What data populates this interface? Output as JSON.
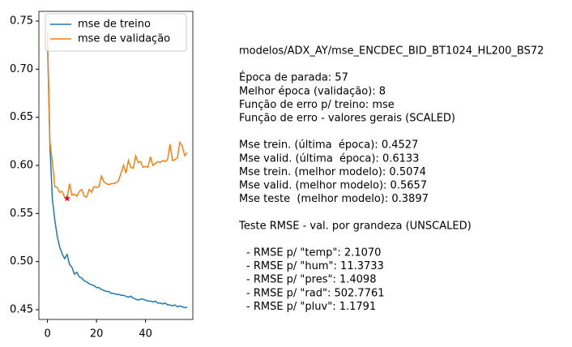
{
  "chart_data": {
    "type": "line",
    "x": [
      0,
      1,
      2,
      3,
      4,
      5,
      6,
      7,
      8,
      9,
      10,
      11,
      12,
      13,
      14,
      15,
      16,
      17,
      18,
      19,
      20,
      21,
      22,
      23,
      24,
      25,
      26,
      27,
      28,
      29,
      30,
      31,
      32,
      33,
      34,
      35,
      36,
      37,
      38,
      39,
      40,
      41,
      42,
      43,
      44,
      45,
      46,
      47,
      48,
      49,
      50,
      51,
      52,
      53,
      54,
      55,
      56,
      57
    ],
    "series": [
      {
        "name": "mse de treino",
        "color": "#1f77b4",
        "values": [
          0.73,
          0.62,
          0.565,
          0.543,
          0.526,
          0.515,
          0.508,
          0.503,
          0.5074,
          0.497,
          0.494,
          0.487,
          0.489,
          0.484,
          0.483,
          0.48,
          0.479,
          0.477,
          0.476,
          0.475,
          0.473,
          0.473,
          0.471,
          0.47,
          0.469,
          0.469,
          0.467,
          0.467,
          0.466,
          0.466,
          0.465,
          0.465,
          0.464,
          0.463,
          0.464,
          0.462,
          0.461,
          0.46,
          0.461,
          0.461,
          0.46,
          0.459,
          0.459,
          0.458,
          0.459,
          0.457,
          0.457,
          0.456,
          0.457,
          0.455,
          0.455,
          0.454,
          0.455,
          0.453,
          0.454,
          0.453,
          0.452,
          0.4527
        ]
      },
      {
        "name": "mse de validação",
        "color": "#ff7f0e",
        "values": [
          0.74,
          0.625,
          0.603,
          0.578,
          0.577,
          0.572,
          0.573,
          0.567,
          0.5657,
          0.581,
          0.569,
          0.57,
          0.568,
          0.573,
          0.575,
          0.568,
          0.567,
          0.575,
          0.572,
          0.578,
          0.577,
          0.578,
          0.589,
          0.583,
          0.581,
          0.58,
          0.581,
          0.581,
          0.582,
          0.584,
          0.592,
          0.6,
          0.592,
          0.605,
          0.598,
          0.597,
          0.61,
          0.603,
          0.604,
          0.598,
          0.599,
          0.598,
          0.609,
          0.6,
          0.602,
          0.604,
          0.603,
          0.605,
          0.604,
          0.606,
          0.622,
          0.605,
          0.606,
          0.608,
          0.624,
          0.62,
          0.61,
          0.6133
        ]
      }
    ],
    "highlight": {
      "series": 1,
      "index": 8,
      "color": "#ff0000"
    },
    "xlim": [
      -3.5,
      59.3
    ],
    "ylim": [
      0.4399,
      0.7601
    ],
    "xticks": [
      0,
      20,
      40
    ],
    "yticks": [
      {
        "value": 0.45,
        "label": "0.45"
      },
      {
        "value": 0.5,
        "label": "0.50"
      },
      {
        "value": 0.55,
        "label": "0.55"
      },
      {
        "value": 0.6,
        "label": "0.60"
      },
      {
        "value": 0.65,
        "label": "0.65"
      },
      {
        "value": 0.7,
        "label": "0.70"
      },
      {
        "value": 0.75,
        "label": "0.75"
      }
    ],
    "legend": "upper left",
    "notes": [
      [
        "modelos/ADX_AY/mse_ENCDEC_BID_BT1024_HL200_BS72"
      ],
      [
        "Época de parada: 57",
        "Melhor época (validação): 8",
        "Função de erro p/ treino: mse",
        "Função de erro - valores gerais (SCALED)"
      ],
      [
        "Mse trein. (última  época): 0.4527",
        "Mse valid. (última  época): 0.6133",
        "Mse trein. (melhor modelo): 0.5074",
        "Mse valid. (melhor modelo): 0.5657",
        "Mse teste  (melhor modelo): 0.3897"
      ],
      [
        "Teste RMSE - val. por grandeza (UNSCALED)"
      ],
      [
        "- RMSE p/ \"temp\": 2.1070",
        "- RMSE p/ \"hum\": 11.3733",
        "- RMSE p/ \"pres\": 1.4098",
        "- RMSE p/ \"rad\": 502.7761",
        "- RMSE p/ \"pluv\": 1.1791"
      ]
    ]
  }
}
